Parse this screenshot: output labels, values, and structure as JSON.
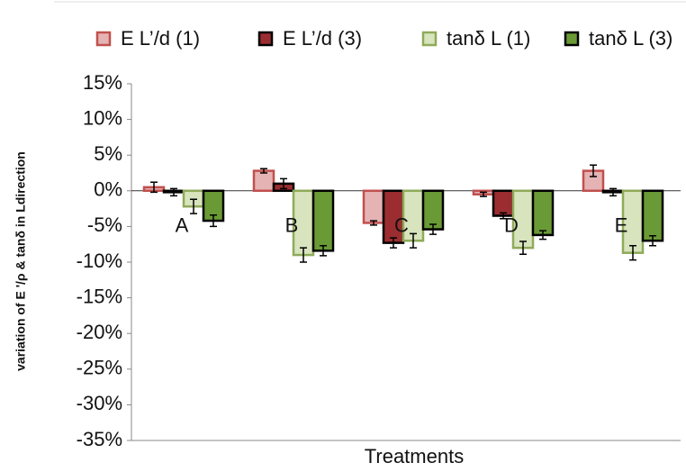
{
  "chart_data": {
    "type": "bar",
    "x_label": "Treatments",
    "y_label": "variation of E '/ρ & tanδ in Ldirection",
    "categories": [
      "A",
      "B",
      "C",
      "D",
      "E"
    ],
    "series": [
      {
        "name": "E L’/d (1)",
        "color": "#e6b3b5",
        "edge": "#c0504d",
        "values": [
          0.5,
          2.8,
          -4.5,
          -0.5,
          2.8
        ],
        "errors": [
          0.7,
          0.3,
          0.3,
          0.3,
          0.8
        ]
      },
      {
        "name": "E L’/d (3)",
        "color": "#9b2d30",
        "edge": "#000000",
        "values": [
          -0.2,
          1.0,
          -7.3,
          -3.5,
          -0.2
        ],
        "errors": [
          0.5,
          0.7,
          0.7,
          0.4,
          0.5
        ]
      },
      {
        "name": "tanδ L (1)",
        "color": "#d7e4bd",
        "edge": "#8faa5a",
        "values": [
          -2.2,
          -9.0,
          -7.0,
          -8.0,
          -8.7
        ],
        "errors": [
          1.0,
          1.0,
          1.0,
          0.9,
          1.0
        ]
      },
      {
        "name": "tanδ L (3)",
        "color": "#6a9a35",
        "edge": "#000000",
        "values": [
          -4.2,
          -8.4,
          -5.4,
          -6.2,
          -7.0
        ],
        "errors": [
          0.8,
          0.7,
          0.7,
          0.6,
          0.7
        ]
      }
    ],
    "ylim": [
      -35,
      15
    ],
    "yticks": [
      {
        "value": -35,
        "label": "-35%"
      },
      {
        "value": -30,
        "label": "-30%"
      },
      {
        "value": -25,
        "label": "-25%"
      },
      {
        "value": -20,
        "label": "-20%"
      },
      {
        "value": -15,
        "label": "-15%"
      },
      {
        "value": -10,
        "label": "-10%"
      },
      {
        "value": -5,
        "label": "-5%"
      },
      {
        "value": 0,
        "label": "0%"
      },
      {
        "value": 5,
        "label": "5%"
      },
      {
        "value": 10,
        "label": "10%"
      },
      {
        "value": 15,
        "label": "15%"
      }
    ],
    "grid": false,
    "legend": "top"
  }
}
